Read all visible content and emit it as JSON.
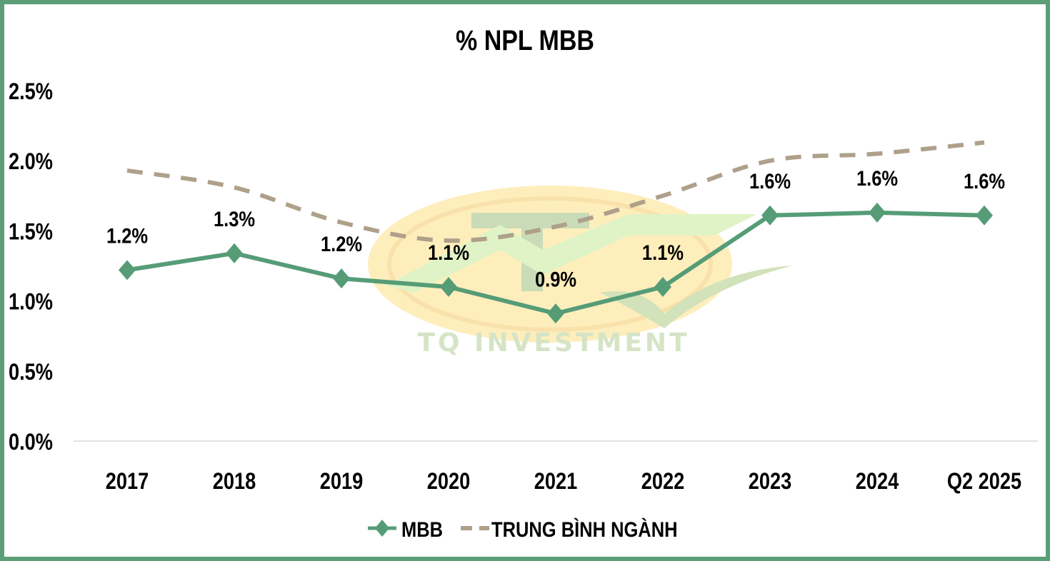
{
  "chart_data": {
    "type": "line",
    "title": "% NPL MBB",
    "xlabel": "",
    "ylabel": "",
    "categories": [
      "2017",
      "2018",
      "2019",
      "2020",
      "2021",
      "2022",
      "2023",
      "2024",
      "Q2 2025"
    ],
    "ylim": [
      0,
      2.5
    ],
    "yticks": [
      "0.0%",
      "0.5%",
      "1.0%",
      "1.5%",
      "2.0%",
      "2.5%"
    ],
    "ytick_values": [
      0,
      0.5,
      1.0,
      1.5,
      2.0,
      2.5
    ],
    "grid": false,
    "legend_position": "bottom",
    "series": [
      {
        "name": "MBB",
        "values": [
          1.22,
          1.34,
          1.16,
          1.1,
          0.91,
          1.1,
          1.61,
          1.63,
          1.61
        ],
        "labels": [
          "1.2%",
          "1.3%",
          "1.2%",
          "1.1%",
          "0.9%",
          "1.1%",
          "1.6%",
          "1.6%",
          "1.6%"
        ],
        "color": "#559c77",
        "style": "solid-diamond"
      },
      {
        "name": "TRUNG BÌNH NGÀNH",
        "values": [
          1.93,
          1.81,
          1.56,
          1.43,
          1.53,
          1.75,
          2.0,
          2.05,
          2.13
        ],
        "color": "#aea08a",
        "style": "dashed"
      }
    ],
    "watermark": "TQ INVESTMENT"
  },
  "colors": {
    "border": "#5b9e78",
    "axis": "#d9d9d9"
  }
}
